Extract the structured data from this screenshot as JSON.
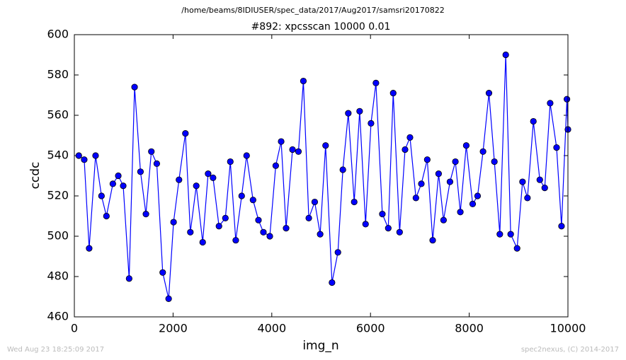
{
  "chart_data": {
    "type": "line",
    "suptitle": "/home/beams/8IDIUSER/spec_data/2017/Aug2017/samsri20170822",
    "title": "#892: xpcsscan 10000 0.01",
    "x_label": "img_n",
    "y_label": "ccdc",
    "footer_left": "Wed Aug 23 18:25:09 2017",
    "footer_right": "spec2nexus, (C) 2014-2017",
    "x": [
      90,
      200,
      300,
      430,
      550,
      650,
      780,
      890,
      990,
      1110,
      1220,
      1340,
      1450,
      1560,
      1670,
      1790,
      1910,
      2010,
      2120,
      2250,
      2350,
      2470,
      2600,
      2710,
      2810,
      2930,
      3060,
      3160,
      3270,
      3390,
      3490,
      3620,
      3730,
      3830,
      3960,
      4080,
      4190,
      4290,
      4420,
      4540,
      4640,
      4750,
      4870,
      4980,
      5090,
      5220,
      5340,
      5440,
      5550,
      5670,
      5780,
      5900,
      6010,
      6110,
      6240,
      6360,
      6460,
      6590,
      6700,
      6800,
      6920,
      7030,
      7150,
      7260,
      7380,
      7480,
      7610,
      7720,
      7820,
      7940,
      8070,
      8170,
      8280,
      8400,
      8510,
      8620,
      8740,
      8840,
      8970,
      9080,
      9180,
      9300,
      9430,
      9530,
      9640,
      9770,
      9870,
      9980,
      10000
    ],
    "series": [
      {
        "color": "#0000ff",
        "values": [
          540,
          538,
          494,
          540,
          520,
          510,
          526,
          530,
          525,
          479,
          574,
          532,
          511,
          542,
          536,
          482,
          469,
          507,
          528,
          551,
          502,
          525,
          497,
          531,
          529,
          505,
          509,
          537,
          498,
          520,
          540,
          518,
          508,
          502,
          500,
          535,
          547,
          504,
          543,
          542,
          577,
          509,
          517,
          501,
          545,
          477,
          492,
          533,
          561,
          517,
          562,
          506,
          556,
          576,
          511,
          504,
          571,
          502,
          543,
          549,
          519,
          526,
          538,
          498,
          531,
          508,
          527,
          537,
          512,
          545,
          516,
          520,
          542,
          571,
          537,
          501,
          590,
          501,
          494,
          527,
          519,
          557,
          528,
          524,
          566,
          544,
          505,
          568,
          553
        ]
      }
    ],
    "xlim": [
      0,
      10000
    ],
    "ylim": [
      460,
      600
    ],
    "xticks": [
      0,
      2000,
      4000,
      6000,
      8000,
      10000
    ],
    "yticks": [
      460,
      480,
      500,
      520,
      540,
      560,
      580,
      600
    ]
  }
}
